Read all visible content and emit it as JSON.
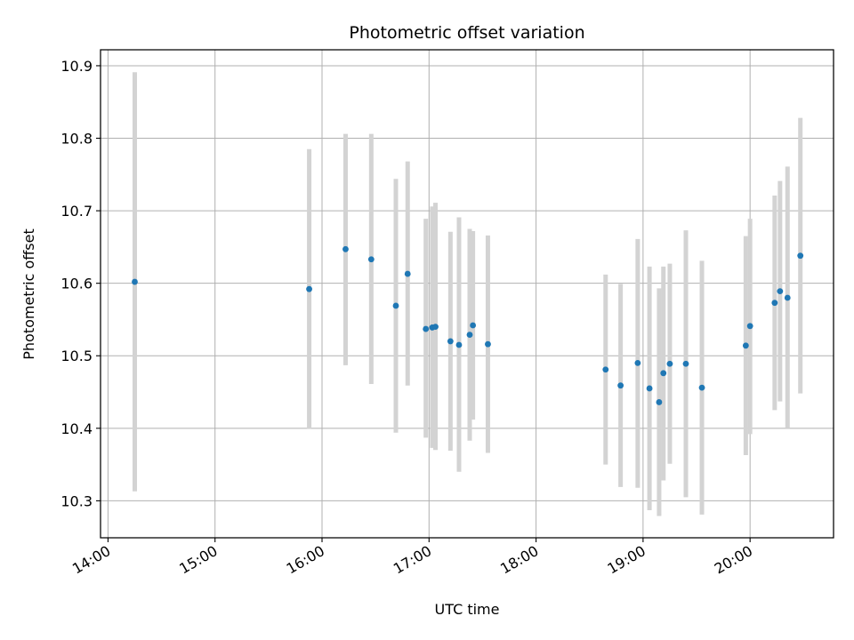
{
  "chart_data": {
    "type": "scatter",
    "title": "Photometric offset variation",
    "xlabel": "UTC time",
    "ylabel": "Photometric offset",
    "x_unit": "hours UTC",
    "xlim": [
      13.93,
      20.78
    ],
    "ylim": [
      10.249,
      10.922
    ],
    "x_ticks": [
      {
        "value": 14,
        "label": "14:00"
      },
      {
        "value": 15,
        "label": "15:00"
      },
      {
        "value": 16,
        "label": "16:00"
      },
      {
        "value": 17,
        "label": "17:00"
      },
      {
        "value": 18,
        "label": "18:00"
      },
      {
        "value": 19,
        "label": "19:00"
      },
      {
        "value": 20,
        "label": "20:00"
      }
    ],
    "y_ticks": [
      {
        "value": 10.3,
        "label": "10.3"
      },
      {
        "value": 10.4,
        "label": "10.4"
      },
      {
        "value": 10.5,
        "label": "10.5"
      },
      {
        "value": 10.6,
        "label": "10.6"
      },
      {
        "value": 10.7,
        "label": "10.7"
      },
      {
        "value": 10.8,
        "label": "10.8"
      },
      {
        "value": 10.9,
        "label": "10.9"
      }
    ],
    "grid": true,
    "marker_color": "#1f77b4",
    "errorbar_color": "#d3d3d3",
    "points": [
      {
        "x": 14.25,
        "y": 10.602,
        "lo": 10.313,
        "hi": 10.891
      },
      {
        "x": 15.88,
        "y": 10.592,
        "lo": 10.399,
        "hi": 10.785
      },
      {
        "x": 16.22,
        "y": 10.647,
        "lo": 10.487,
        "hi": 10.806
      },
      {
        "x": 16.46,
        "y": 10.633,
        "lo": 10.461,
        "hi": 10.806
      },
      {
        "x": 16.69,
        "y": 10.569,
        "lo": 10.394,
        "hi": 10.744
      },
      {
        "x": 16.8,
        "y": 10.613,
        "lo": 10.459,
        "hi": 10.768
      },
      {
        "x": 16.97,
        "y": 10.537,
        "lo": 10.387,
        "hi": 10.689
      },
      {
        "x": 17.03,
        "y": 10.539,
        "lo": 10.373,
        "hi": 10.706
      },
      {
        "x": 17.06,
        "y": 10.54,
        "lo": 10.37,
        "hi": 10.711
      },
      {
        "x": 17.2,
        "y": 10.52,
        "lo": 10.369,
        "hi": 10.671
      },
      {
        "x": 17.28,
        "y": 10.515,
        "lo": 10.34,
        "hi": 10.691
      },
      {
        "x": 17.38,
        "y": 10.529,
        "lo": 10.383,
        "hi": 10.675
      },
      {
        "x": 17.41,
        "y": 10.542,
        "lo": 10.412,
        "hi": 10.672
      },
      {
        "x": 17.55,
        "y": 10.516,
        "lo": 10.366,
        "hi": 10.666
      },
      {
        "x": 18.65,
        "y": 10.481,
        "lo": 10.35,
        "hi": 10.612
      },
      {
        "x": 18.79,
        "y": 10.459,
        "lo": 10.319,
        "hi": 10.599
      },
      {
        "x": 18.95,
        "y": 10.49,
        "lo": 10.318,
        "hi": 10.661
      },
      {
        "x": 19.06,
        "y": 10.455,
        "lo": 10.287,
        "hi": 10.623
      },
      {
        "x": 19.15,
        "y": 10.436,
        "lo": 10.279,
        "hi": 10.593
      },
      {
        "x": 19.19,
        "y": 10.476,
        "lo": 10.328,
        "hi": 10.623
      },
      {
        "x": 19.25,
        "y": 10.489,
        "lo": 10.351,
        "hi": 10.627
      },
      {
        "x": 19.4,
        "y": 10.489,
        "lo": 10.305,
        "hi": 10.673
      },
      {
        "x": 19.55,
        "y": 10.456,
        "lo": 10.281,
        "hi": 10.631
      },
      {
        "x": 19.96,
        "y": 10.514,
        "lo": 10.363,
        "hi": 10.665
      },
      {
        "x": 20.0,
        "y": 10.541,
        "lo": 10.392,
        "hi": 10.689
      },
      {
        "x": 20.23,
        "y": 10.573,
        "lo": 10.425,
        "hi": 10.721
      },
      {
        "x": 20.28,
        "y": 10.589,
        "lo": 10.437,
        "hi": 10.741
      },
      {
        "x": 20.35,
        "y": 10.58,
        "lo": 10.4,
        "hi": 10.761
      },
      {
        "x": 20.47,
        "y": 10.638,
        "lo": 10.448,
        "hi": 10.828
      }
    ]
  }
}
